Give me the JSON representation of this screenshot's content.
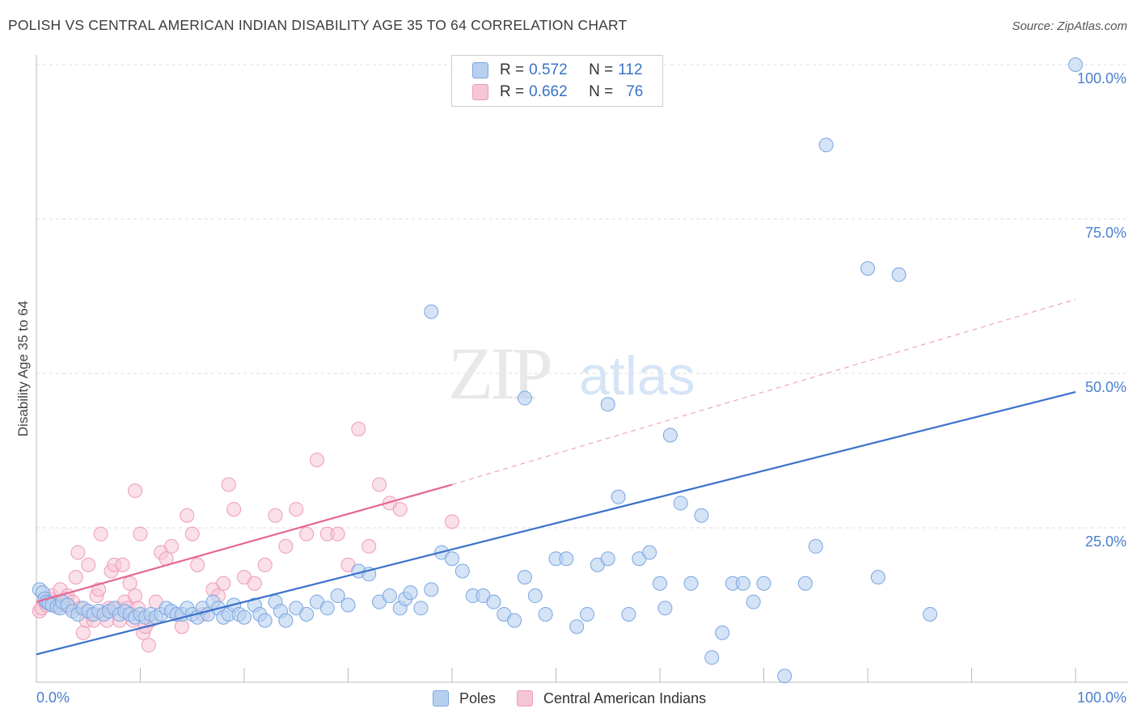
{
  "header": {
    "title": "POLISH VS CENTRAL AMERICAN INDIAN DISABILITY AGE 35 TO 64 CORRELATION CHART",
    "source": "Source: ZipAtlas.com"
  },
  "watermark": {
    "zip": "ZIP",
    "atlas": "atlas"
  },
  "legend": {
    "rows": [
      {
        "r_label": "R =",
        "r_value": "0.572",
        "n_label": "N =",
        "n_value": "112"
      },
      {
        "r_label": "R =",
        "r_value": "0.662",
        "n_label": "N =",
        "n_value": "76"
      }
    ],
    "bottom": [
      {
        "label": "Poles"
      },
      {
        "label": "Central American Indians"
      }
    ]
  },
  "colors": {
    "blue": "#3a72c9",
    "blue_fill": "#b8d0f0",
    "blue_stroke": "#7aa6e0",
    "pink": "#e66690",
    "pink_fill": "#f6c6d5",
    "pink_stroke": "#ee9cb5",
    "axis_text": "#4a7fd0",
    "grid": "#dddddd"
  },
  "chart_data": {
    "type": "scatter",
    "title": "POLISH VS CENTRAL AMERICAN INDIAN DISABILITY AGE 35 TO 64 CORRELATION CHART",
    "ylabel": "Disability Age 35 to 64",
    "xlabel": "",
    "xlim": [
      0,
      100
    ],
    "ylim": [
      0,
      100
    ],
    "x_tick_labels": [
      "0.0%",
      "100.0%"
    ],
    "y_tick_labels": [
      "25.0%",
      "50.0%",
      "75.0%",
      "100.0%"
    ],
    "y_ticks": [
      25,
      50,
      75,
      100
    ],
    "grid": true,
    "legend_position": "top-center",
    "series": [
      {
        "name": "Poles",
        "color": "#3a72c9",
        "trend": {
          "x0": 0,
          "y0": 4.5,
          "x1": 100,
          "y1": 47.0,
          "dashed_to": null
        },
        "points": [
          [
            0.3,
            15
          ],
          [
            0.6,
            14.5
          ],
          [
            0.8,
            13.5
          ],
          [
            1.0,
            13
          ],
          [
            1.2,
            12.8
          ],
          [
            1.5,
            12.5
          ],
          [
            2,
            12.2
          ],
          [
            2.3,
            12
          ],
          [
            2.5,
            13
          ],
          [
            3,
            12.5
          ],
          [
            3.5,
            11.5
          ],
          [
            4,
            11
          ],
          [
            4.5,
            12
          ],
          [
            5,
            11.5
          ],
          [
            5.5,
            11
          ],
          [
            6,
            11.5
          ],
          [
            6.5,
            11
          ],
          [
            7,
            11.5
          ],
          [
            7.5,
            12
          ],
          [
            8,
            11
          ],
          [
            8.5,
            11.5
          ],
          [
            9,
            11
          ],
          [
            9.5,
            10.5
          ],
          [
            10,
            11
          ],
          [
            10.5,
            10.5
          ],
          [
            11,
            11
          ],
          [
            11.5,
            10.5
          ],
          [
            12,
            11
          ],
          [
            12.5,
            12
          ],
          [
            13,
            11.5
          ],
          [
            13.5,
            11
          ],
          [
            14,
            11
          ],
          [
            14.5,
            12
          ],
          [
            15,
            11
          ],
          [
            15.5,
            10.5
          ],
          [
            16,
            12
          ],
          [
            16.5,
            11
          ],
          [
            17,
            13
          ],
          [
            17.5,
            12
          ],
          [
            18,
            10.5
          ],
          [
            18.5,
            11
          ],
          [
            19,
            12.5
          ],
          [
            19.5,
            11
          ],
          [
            20,
            10.5
          ],
          [
            21,
            12.5
          ],
          [
            21.5,
            11
          ],
          [
            22,
            10
          ],
          [
            23,
            13
          ],
          [
            23.5,
            11.5
          ],
          [
            24,
            10
          ],
          [
            25,
            12
          ],
          [
            26,
            11
          ],
          [
            27,
            13
          ],
          [
            28,
            12
          ],
          [
            29,
            14
          ],
          [
            30,
            12.5
          ],
          [
            31,
            18
          ],
          [
            32,
            17.5
          ],
          [
            33,
            13
          ],
          [
            34,
            14
          ],
          [
            35,
            12
          ],
          [
            35.5,
            13.5
          ],
          [
            36,
            14.5
          ],
          [
            37,
            12
          ],
          [
            38,
            15
          ],
          [
            39,
            21
          ],
          [
            40,
            20
          ],
          [
            41,
            18
          ],
          [
            42,
            14
          ],
          [
            43,
            14
          ],
          [
            44,
            13
          ],
          [
            45,
            11
          ],
          [
            46,
            10
          ],
          [
            47,
            17
          ],
          [
            48,
            14
          ],
          [
            49,
            11
          ],
          [
            50,
            20
          ],
          [
            51,
            20
          ],
          [
            52,
            9
          ],
          [
            53,
            11
          ],
          [
            54,
            19
          ],
          [
            55,
            20
          ],
          [
            56,
            30
          ],
          [
            57,
            11
          ],
          [
            58,
            20
          ],
          [
            59,
            21
          ],
          [
            60,
            16
          ],
          [
            60.5,
            12
          ],
          [
            61,
            40
          ],
          [
            62,
            29
          ],
          [
            63,
            16
          ],
          [
            64,
            27
          ],
          [
            65,
            4
          ],
          [
            66,
            8
          ],
          [
            67,
            16
          ],
          [
            68,
            16
          ],
          [
            69,
            13
          ],
          [
            70,
            16
          ],
          [
            72,
            1
          ],
          [
            74,
            16
          ],
          [
            75,
            22
          ],
          [
            76,
            87
          ],
          [
            80,
            67
          ],
          [
            81,
            17
          ],
          [
            83,
            66
          ],
          [
            86,
            11
          ],
          [
            100,
            100
          ],
          [
            47,
            46
          ],
          [
            38,
            60
          ],
          [
            55,
            45
          ]
        ]
      },
      {
        "name": "Central American Indians",
        "color": "#e66690",
        "trend": {
          "x0": 0,
          "y0": 13.0,
          "x1": 40,
          "y1": 32.0,
          "dashed_to": {
            "x": 100,
            "y": 62.0
          }
        },
        "points": [
          [
            0.3,
            11.5
          ],
          [
            0.5,
            12
          ],
          [
            0.8,
            13
          ],
          [
            1,
            12.5
          ],
          [
            1.2,
            13.5
          ],
          [
            1.5,
            14
          ],
          [
            1.8,
            12.5
          ],
          [
            2,
            13
          ],
          [
            2.3,
            15
          ],
          [
            2.5,
            12.5
          ],
          [
            2.8,
            13.5
          ],
          [
            3,
            14
          ],
          [
            3.3,
            12
          ],
          [
            3.5,
            13
          ],
          [
            3.8,
            17
          ],
          [
            4,
            21
          ],
          [
            4.2,
            12
          ],
          [
            4.5,
            8
          ],
          [
            4.8,
            10
          ],
          [
            5,
            19
          ],
          [
            5.3,
            11
          ],
          [
            5.5,
            10
          ],
          [
            5.8,
            14
          ],
          [
            6,
            15
          ],
          [
            6.2,
            24
          ],
          [
            6.5,
            11
          ],
          [
            6.8,
            10
          ],
          [
            7,
            12
          ],
          [
            7.2,
            18
          ],
          [
            7.5,
            19
          ],
          [
            7.8,
            12
          ],
          [
            8,
            10
          ],
          [
            8.3,
            19
          ],
          [
            8.5,
            13
          ],
          [
            8.8,
            12
          ],
          [
            9,
            16
          ],
          [
            9.3,
            10
          ],
          [
            9.5,
            14
          ],
          [
            9.8,
            12
          ],
          [
            10,
            24
          ],
          [
            10.3,
            8
          ],
          [
            10.5,
            9
          ],
          [
            10.8,
            6
          ],
          [
            11,
            10
          ],
          [
            11.5,
            13
          ],
          [
            12,
            21
          ],
          [
            12.5,
            20
          ],
          [
            13,
            22
          ],
          [
            13.5,
            11
          ],
          [
            14,
            9
          ],
          [
            14.5,
            27
          ],
          [
            15,
            24
          ],
          [
            15.5,
            19
          ],
          [
            16,
            11
          ],
          [
            17,
            15
          ],
          [
            17.5,
            14
          ],
          [
            18,
            16
          ],
          [
            18.5,
            32
          ],
          [
            19,
            28
          ],
          [
            20,
            17
          ],
          [
            21,
            16
          ],
          [
            22,
            19
          ],
          [
            23,
            27
          ],
          [
            24,
            22
          ],
          [
            25,
            28
          ],
          [
            26,
            24
          ],
          [
            27,
            36
          ],
          [
            28,
            24
          ],
          [
            29,
            24
          ],
          [
            30,
            19
          ],
          [
            31,
            41
          ],
          [
            32,
            22
          ],
          [
            33,
            32
          ],
          [
            34,
            29
          ],
          [
            35,
            28
          ],
          [
            40,
            26
          ],
          [
            9.5,
            31
          ]
        ]
      }
    ]
  }
}
